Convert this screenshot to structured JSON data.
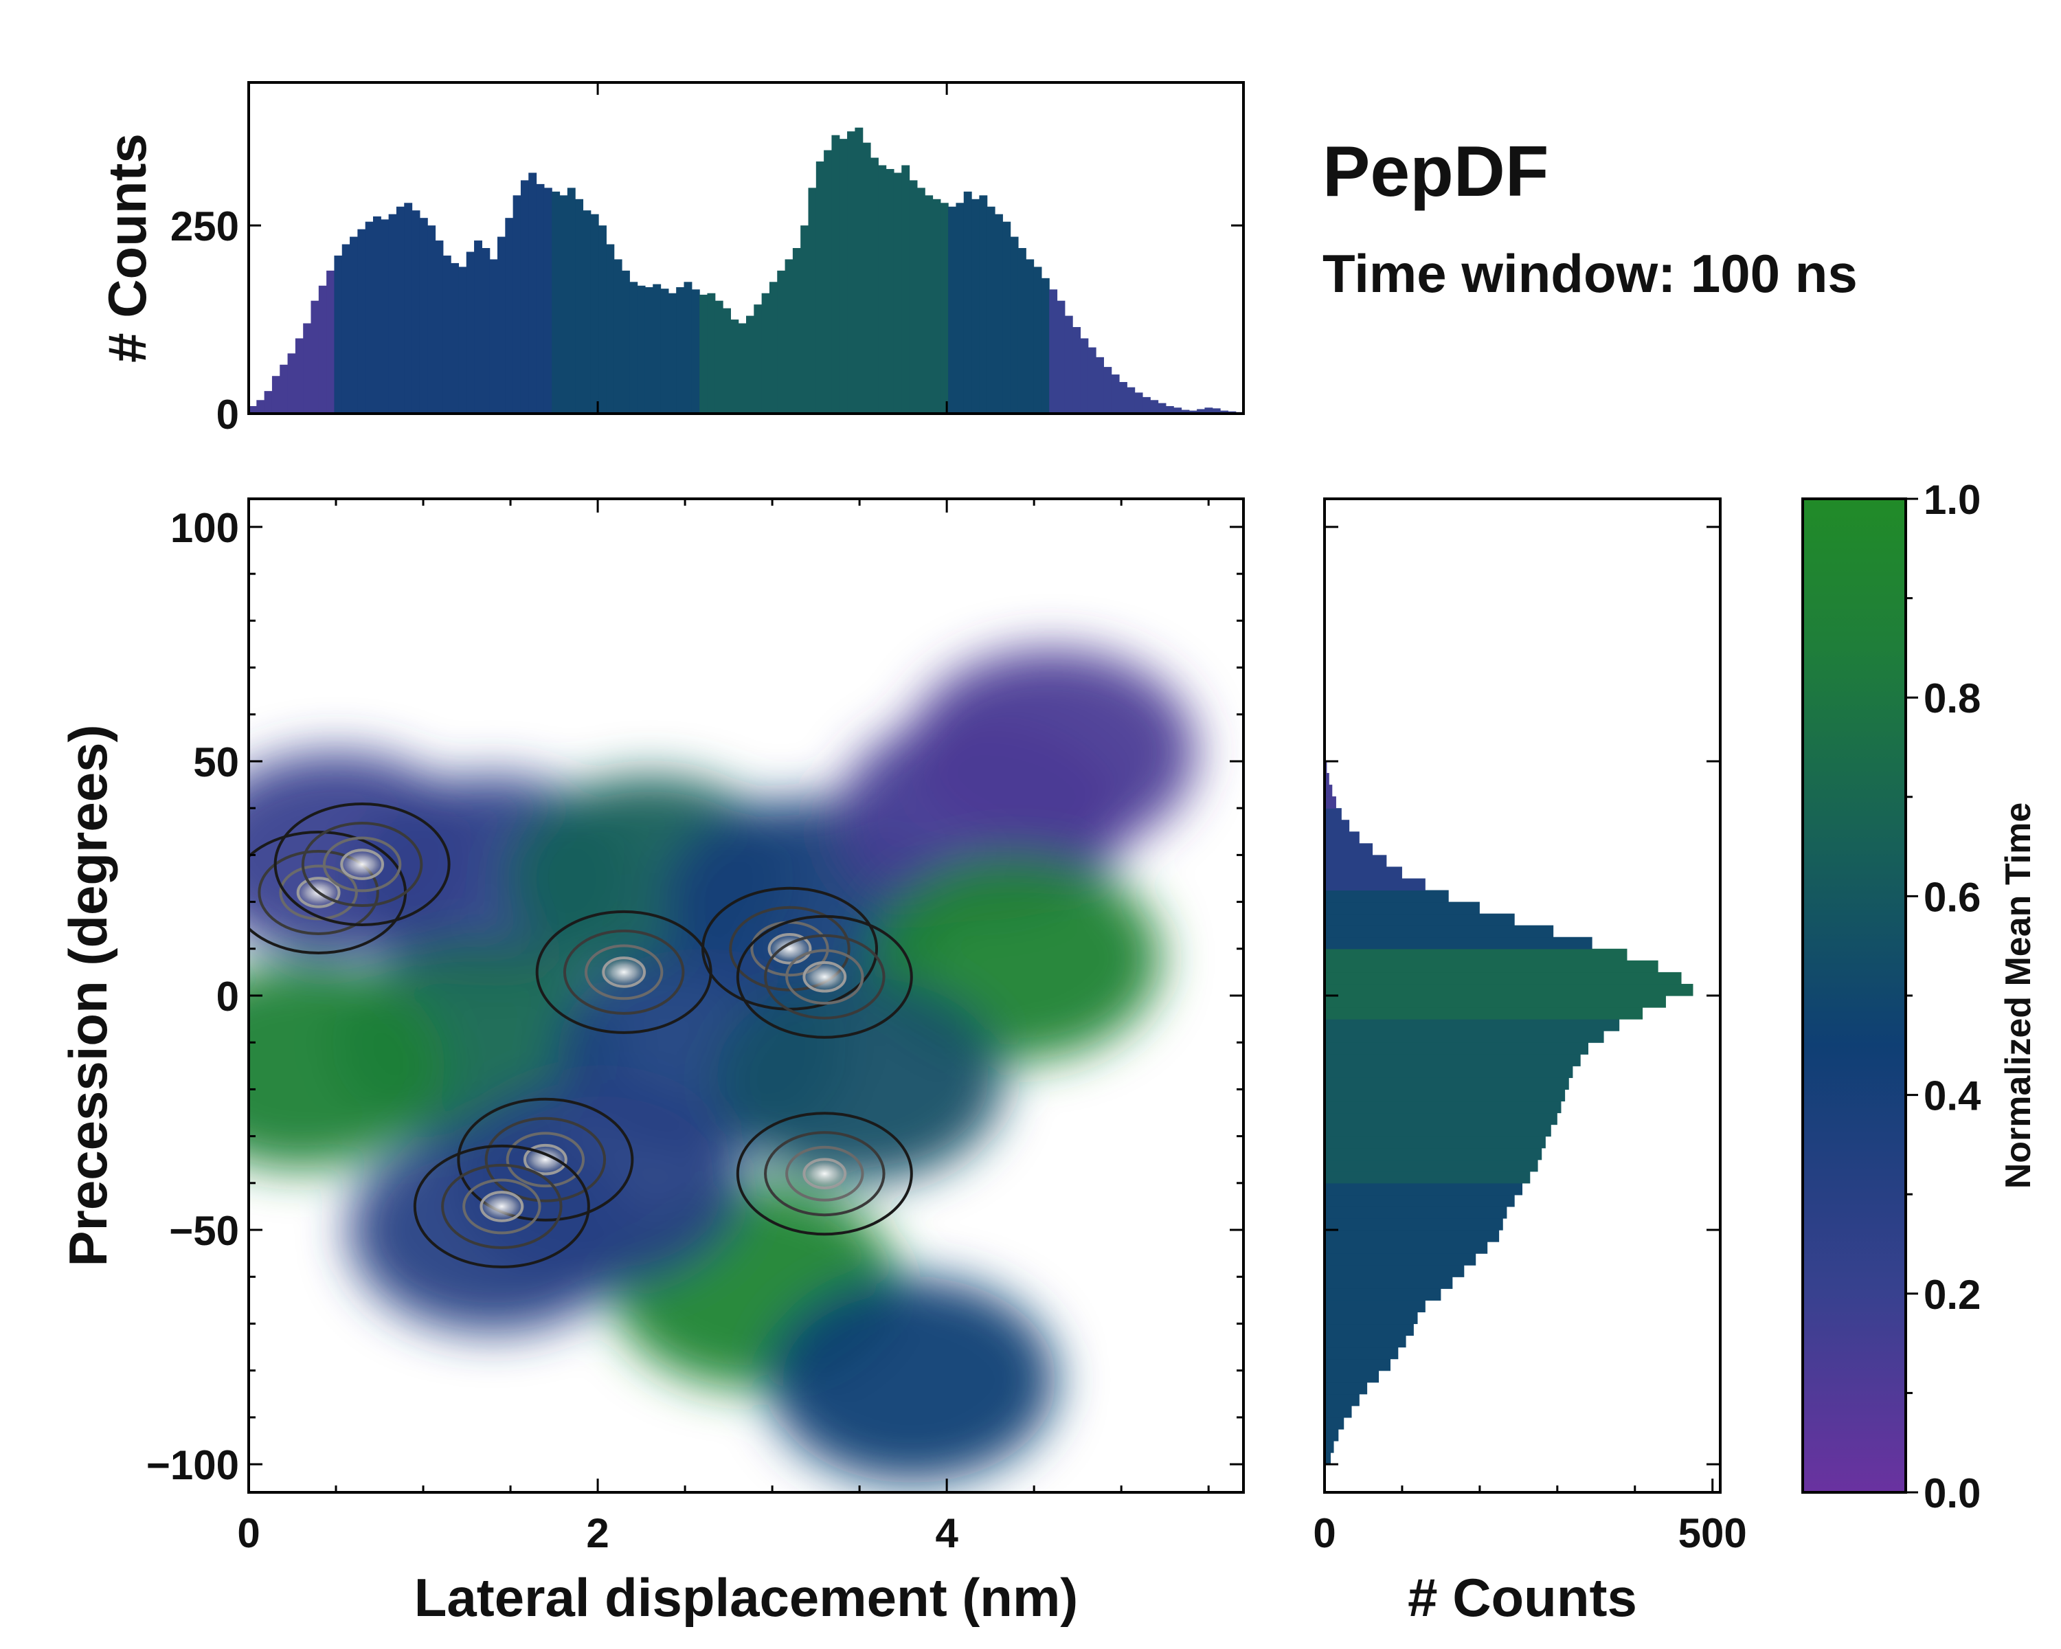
{
  "chart_data": {
    "type": "heatmap",
    "title": "PepDF",
    "subtitle": "Time window: 100 ns",
    "main": {
      "xlabel": "Lateral displacement (nm)",
      "ylabel": "Precession (degrees)",
      "xlim": [
        0,
        5.7
      ],
      "ylim": [
        -106,
        106
      ],
      "xticks": [
        0,
        2,
        4
      ],
      "xtick_labels": [
        "0",
        "2",
        "4"
      ],
      "yticks": [
        100,
        50,
        0,
        -50,
        -100
      ],
      "ytick_labels": [
        "100",
        "50",
        "0",
        "−50",
        "−100"
      ],
      "colored_by": "Normalized Mean Time",
      "regions": [
        {
          "x": 0.5,
          "y": 30,
          "value": 0.2
        },
        {
          "x": 1.4,
          "y": 25,
          "value": 0.25
        },
        {
          "x": 2.3,
          "y": 25,
          "value": 0.65
        },
        {
          "x": 3.2,
          "y": 20,
          "value": 0.4
        },
        {
          "x": 4.2,
          "y": 38,
          "value": 0.15
        },
        {
          "x": 4.6,
          "y": 52,
          "value": 0.12
        },
        {
          "x": 4.4,
          "y": 8,
          "value": 0.9
        },
        {
          "x": 1.3,
          "y": -10,
          "value": 0.7
        },
        {
          "x": 0.3,
          "y": -15,
          "value": 0.88
        },
        {
          "x": 2.6,
          "y": -12,
          "value": 0.35
        },
        {
          "x": 3.5,
          "y": -18,
          "value": 0.55
        },
        {
          "x": 1.4,
          "y": -50,
          "value": 0.3
        },
        {
          "x": 2.9,
          "y": -62,
          "value": 0.92
        },
        {
          "x": 3.8,
          "y": -82,
          "value": 0.45
        },
        {
          "x": 2.0,
          "y": -40,
          "value": 0.3
        }
      ],
      "density_peaks": [
        {
          "x": 0.4,
          "y": 22
        },
        {
          "x": 0.65,
          "y": 28
        },
        {
          "x": 3.1,
          "y": 10
        },
        {
          "x": 3.3,
          "y": 4
        },
        {
          "x": 1.7,
          "y": -35
        },
        {
          "x": 1.45,
          "y": -45
        },
        {
          "x": 2.15,
          "y": 5
        },
        {
          "x": 3.3,
          "y": -38
        }
      ]
    },
    "top_histogram": {
      "ylabel": "# Counts",
      "ylim": [
        0,
        440
      ],
      "yticks": [
        0,
        250
      ],
      "ytick_labels": [
        "0",
        "250"
      ],
      "bins_x_range": [
        0,
        5.7
      ],
      "counts": [
        10,
        18,
        30,
        50,
        65,
        80,
        100,
        120,
        150,
        170,
        190,
        210,
        225,
        235,
        245,
        255,
        262,
        258,
        265,
        275,
        280,
        270,
        260,
        250,
        230,
        210,
        200,
        195,
        215,
        230,
        220,
        205,
        235,
        260,
        290,
        310,
        320,
        305,
        300,
        295,
        290,
        300,
        285,
        270,
        265,
        250,
        225,
        205,
        190,
        175,
        170,
        168,
        172,
        166,
        160,
        168,
        175,
        165,
        158,
        160,
        150,
        140,
        125,
        120,
        130,
        145,
        160,
        175,
        190,
        205,
        220,
        250,
        300,
        335,
        350,
        370,
        365,
        375,
        380,
        360,
        340,
        330,
        325,
        320,
        330,
        310,
        300,
        290,
        285,
        280,
        275,
        280,
        295,
        285,
        290,
        275,
        265,
        255,
        235,
        220,
        205,
        195,
        180,
        165,
        150,
        130,
        115,
        100,
        88,
        75,
        62,
        52,
        42,
        35,
        28,
        22,
        18,
        14,
        10,
        8,
        5,
        4,
        6,
        8,
        7,
        4,
        3,
        2
      ],
      "colored_by": "Normalized Mean Time"
    },
    "right_histogram": {
      "xlabel": "# Counts",
      "xlim": [
        0,
        510
      ],
      "xticks": [
        0,
        500
      ],
      "xtick_labels": [
        "0",
        "500"
      ],
      "bins_y_range": [
        -106,
        106
      ],
      "bins_y_start": -100,
      "bins_y_step": 2.5,
      "counts": [
        8,
        12,
        18,
        25,
        35,
        45,
        55,
        70,
        85,
        95,
        105,
        115,
        120,
        130,
        150,
        165,
        180,
        195,
        210,
        225,
        230,
        235,
        245,
        255,
        265,
        275,
        280,
        285,
        292,
        300,
        305,
        310,
        315,
        320,
        330,
        340,
        360,
        380,
        410,
        440,
        475,
        460,
        430,
        390,
        345,
        295,
        245,
        200,
        160,
        130,
        100,
        80,
        62,
        45,
        32,
        22,
        15,
        10,
        6,
        3
      ],
      "colored_by": "Normalized Mean Time"
    },
    "colorbar": {
      "label": "Normalized Mean Time",
      "range": [
        0,
        1
      ],
      "ticks": [
        0.0,
        0.2,
        0.4,
        0.6,
        0.8,
        1.0
      ],
      "tick_labels": [
        "0.0",
        "0.2",
        "0.4",
        "0.6",
        "0.8",
        "1.0"
      ],
      "colors": [
        "#6a32a0",
        "#38418f",
        "#0f3f74",
        "#176058",
        "#1f7e3a",
        "#218b28"
      ]
    }
  }
}
